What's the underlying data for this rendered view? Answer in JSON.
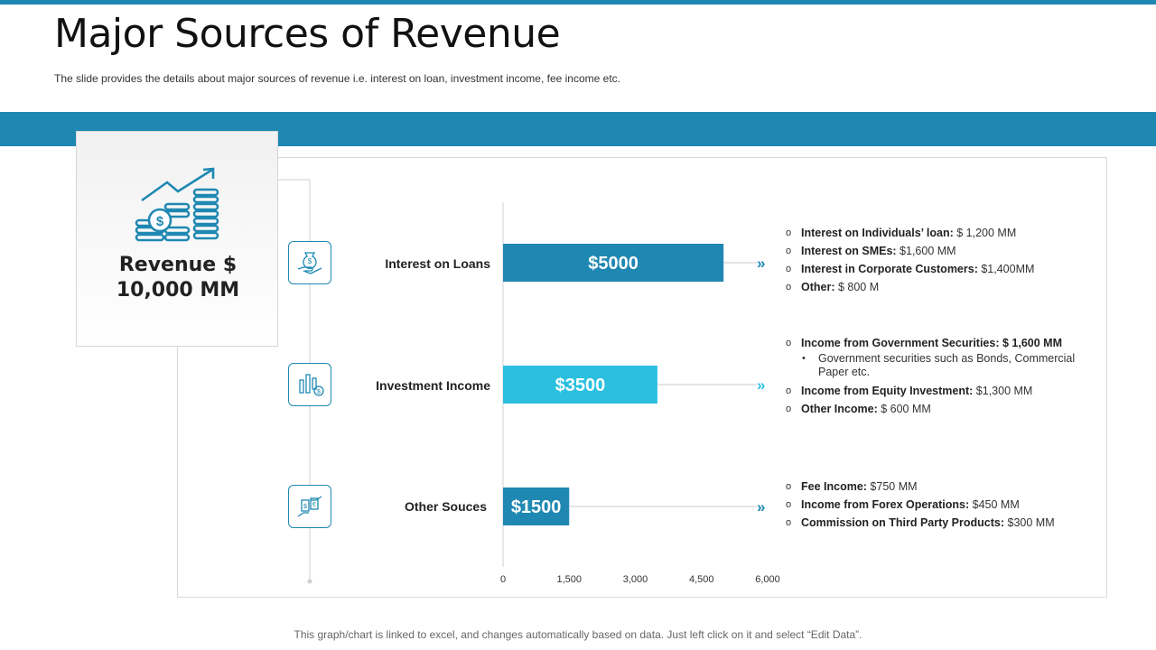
{
  "header": {
    "title": "Major Sources of Revenue",
    "subtitle": "The slide provides  the details about major sources of revenue  i.e. interest on loan, investment income, fee income etc."
  },
  "revenue_card": {
    "line1": "Revenue $",
    "line2": "10,000 MM",
    "icon": "coins-growth-icon"
  },
  "colors": {
    "accent": "#1f88b2",
    "bar_dark": "#1f88b2",
    "bar_light": "#2bc0e0"
  },
  "chart_data": {
    "type": "bar",
    "orientation": "horizontal",
    "categories": [
      "Interest on Loans",
      "Investment Income",
      "Other Souces"
    ],
    "values": [
      5000,
      3500,
      1500
    ],
    "value_labels": [
      "$5000",
      "$3500",
      "$1500"
    ],
    "xlim": [
      0,
      6000
    ],
    "ticks": [
      0,
      1500,
      3000,
      4500,
      6000
    ],
    "tick_labels": [
      "0",
      "1,500",
      "3,000",
      "4,500",
      "6,000"
    ],
    "title": "",
    "xlabel": "",
    "ylabel": "",
    "grid": false
  },
  "category_icons": [
    "money-hand-icon",
    "investment-chart-icon",
    "exchange-icon"
  ],
  "details": [
    {
      "items": [
        {
          "label": "Interest on Individuals’ loan:",
          "value": " $ 1,200 MM"
        },
        {
          "label": "Interest on SMEs:",
          "value": " $1,600 MM"
        },
        {
          "label": "Interest in Corporate Customers:",
          "value": "  $1,400MM"
        },
        {
          "label": "Other:",
          "value": " $ 800 M"
        }
      ]
    },
    {
      "items": [
        {
          "label": "Income from Government Securities: $ 1,600 MM",
          "value": ""
        }
      ],
      "sub": "Government  securities such as Bonds, Commercial Paper etc.",
      "items2": [
        {
          "label": "Income from Equity  Investment:",
          "value": " $1,300 MM"
        },
        {
          "label": "Other Income:",
          "value": " $ 600 MM"
        }
      ]
    },
    {
      "items": [
        {
          "label": "Fee Income:",
          "value": " $750  MM"
        },
        {
          "label": "Income from Forex Operations:",
          "value": "  $450  MM"
        },
        {
          "label": "Commission  on Third Party Products:",
          "value": "  $300 MM"
        }
      ]
    }
  ],
  "footnote": "This graph/chart is linked to excel, and changes automatically based on data. Just left click on it and select “Edit Data”."
}
